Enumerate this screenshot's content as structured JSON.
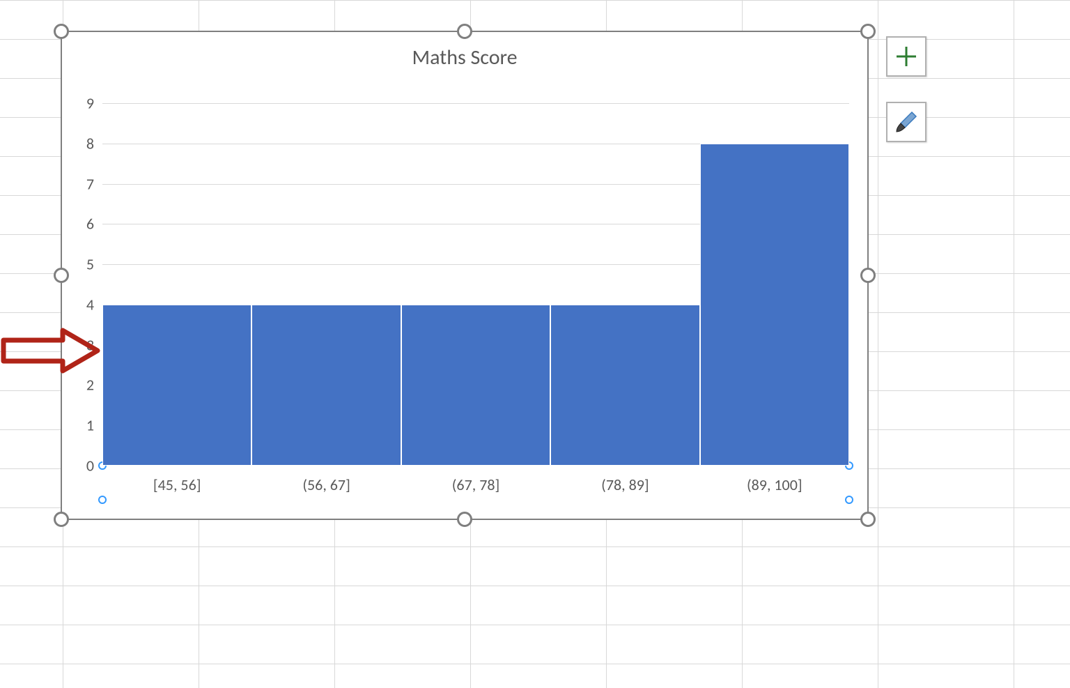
{
  "spreadsheet": {
    "gridline_color": "#d8d8d8",
    "cell_bg": "#ffffff"
  },
  "chart": {
    "type": "histogram",
    "title": "Maths Score",
    "title_fontsize": 30,
    "title_color": "#595959",
    "background_color": "#ffffff",
    "border_color": "#7f7f7f",
    "grid_color": "#d9d9d9",
    "tick_color": "#595959",
    "tick_fontsize": 22,
    "bar_color": "#4472c4",
    "bar_border_color": "#ffffff",
    "bar_gap": 0,
    "ylim": [
      0,
      9
    ],
    "ytick_step": 1,
    "yticks": [
      0,
      1,
      2,
      3,
      4,
      5,
      6,
      7,
      8,
      9
    ],
    "categories": [
      "[45, 56]",
      "(56, 67]",
      "(67, 78]",
      "(78, 89]",
      "(89, 100]"
    ],
    "values": [
      4,
      4,
      4,
      4,
      8
    ],
    "selection": {
      "handle_fill": "#ffffff",
      "handle_border": "#7f7f7f",
      "axis_handle_border": "#3399ff"
    }
  },
  "chart_buttons": {
    "add_element": {
      "icon": "plus",
      "color": "#2e7d32"
    },
    "style": {
      "icon": "brush",
      "color": "#3a7abd"
    }
  },
  "annotation": {
    "type": "arrow",
    "color": "#b02418",
    "stroke_width": 7,
    "points_to_yvalue": 3
  }
}
